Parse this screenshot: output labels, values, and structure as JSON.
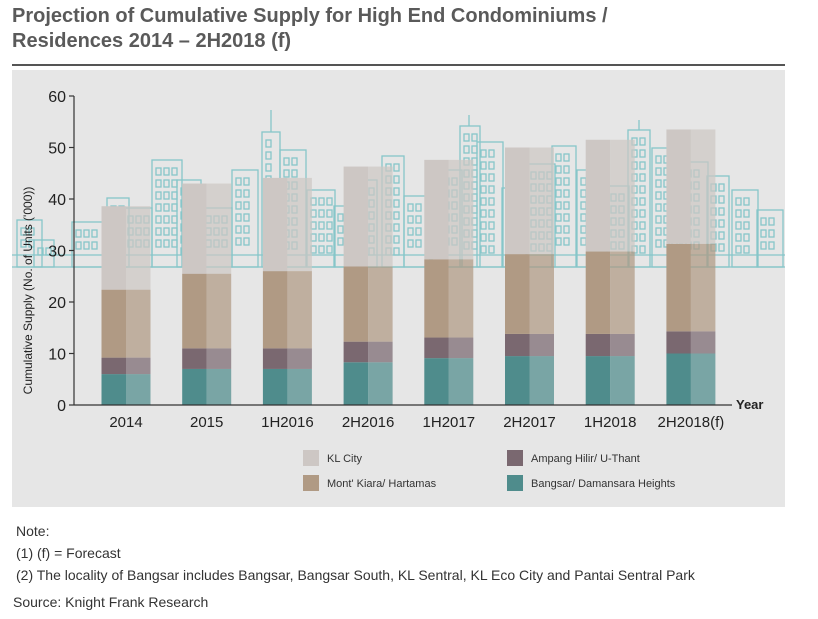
{
  "title_line1": "Projection of Cumulative Supply for High End Condominiums /",
  "title_line2": "Residences 2014 – 2H2018 (f)",
  "notes": {
    "heading": "Note:",
    "line1": "(1) (f) = Forecast",
    "line2": "(2) The locality of Bangsar includes Bangsar, Bangsar South, KL Sentral, KL Eco City and Pantai Sentral Park"
  },
  "source": "Source: Knight Frank Research",
  "chart_data": {
    "type": "bar",
    "stacked": true,
    "title": "",
    "xlabel": "Year",
    "ylabel": "Cumulative Supply (No. of Units ('000))",
    "ylim": [
      0,
      60
    ],
    "yticks": [
      "0",
      "10",
      "20",
      "30",
      "40",
      "50",
      "60"
    ],
    "categories": [
      "2014",
      "2015",
      "1H2016",
      "2H2016",
      "1H2017",
      "2H2017",
      "1H2018",
      "2H2018(f)"
    ],
    "series": [
      {
        "name": "Bangsar/ Damansara Heights",
        "color": "#4f8c8c",
        "values": [
          6.0,
          7.0,
          7.0,
          8.3,
          9.1,
          9.5,
          9.5,
          10.0
        ]
      },
      {
        "name": "Ampang Hilir/ U-Thant",
        "color": "#7a6870",
        "values": [
          3.2,
          4.0,
          4.0,
          4.0,
          4.0,
          4.3,
          4.3,
          4.3
        ]
      },
      {
        "name": "Mont' Kiara/ Hartamas",
        "color": "#b09a84",
        "values": [
          13.2,
          14.5,
          15.0,
          14.6,
          15.2,
          15.5,
          16.0,
          17.0
        ]
      },
      {
        "name": "KL City",
        "color": "#cdc7c4",
        "values": [
          16.2,
          17.5,
          18.1,
          19.4,
          19.3,
          20.7,
          21.7,
          22.2
        ]
      }
    ],
    "legend_position": "bottom",
    "grid": false,
    "background_illustration": "city-skyline"
  }
}
